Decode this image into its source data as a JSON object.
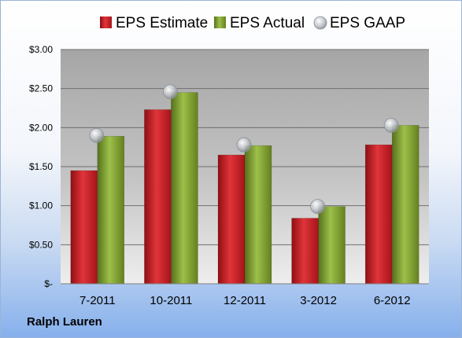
{
  "company": "Ralph Lauren",
  "chart_data": {
    "type": "bar",
    "categories": [
      "7-2011",
      "10-2011",
      "12-2011",
      "3-2012",
      "6-2012"
    ],
    "series": [
      {
        "name": "EPS Estimate",
        "type": "bar",
        "color": "#c0161d",
        "values": [
          1.45,
          2.23,
          1.65,
          0.84,
          1.78
        ]
      },
      {
        "name": "EPS Actual",
        "type": "bar",
        "color": "#7a9a2e",
        "values": [
          1.89,
          2.45,
          1.77,
          0.99,
          2.03
        ]
      },
      {
        "name": "EPS GAAP",
        "type": "marker",
        "color": "#b8bcc4",
        "values": [
          1.9,
          2.46,
          1.78,
          0.99,
          2.03
        ]
      }
    ],
    "ylim": [
      0,
      3.0
    ],
    "yticks": [
      0,
      0.5,
      1.0,
      1.5,
      2.0,
      2.5,
      3.0
    ],
    "ytick_labels": [
      "$-",
      "$0.50",
      "$1.00",
      "$1.50",
      "$2.00",
      "$2.50",
      "$3.00"
    ],
    "grid": true,
    "legend": "top"
  }
}
